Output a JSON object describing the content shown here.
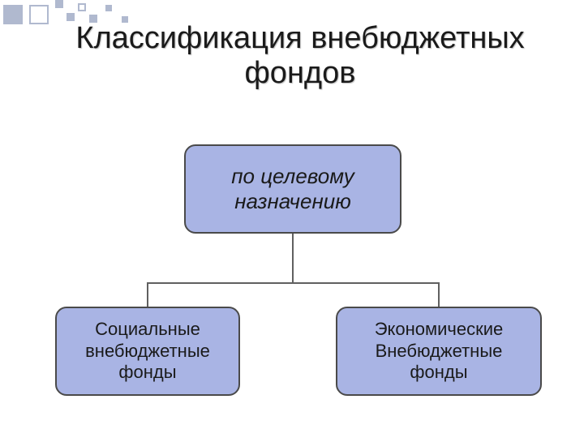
{
  "title": {
    "line1": "Классификация внебюджетных",
    "line2": "фондов",
    "fontsize": 38,
    "color": "#1a1a1a"
  },
  "diagram": {
    "type": "tree",
    "node_fill": "#a9b4e4",
    "node_border_color": "#4a4a4a",
    "node_border_radius": 14,
    "node_border_width": 2,
    "connector_color": "#606060",
    "connector_width": 2,
    "background_color": "#ffffff",
    "nodes": {
      "root": {
        "text": "по целевому\nназначению",
        "fontsize": 26,
        "italic": true
      },
      "left": {
        "text": "Социальные\nвнебюджетные\nфонды",
        "fontsize": 22,
        "italic": false
      },
      "right": {
        "text": "Экономические\nВнебюджетные\nфонды",
        "fontsize": 22,
        "italic": false
      }
    },
    "edges": [
      {
        "from": "root",
        "to": "left"
      },
      {
        "from": "root",
        "to": "right"
      }
    ]
  },
  "decoration": {
    "square_color": "#b0b9cf"
  }
}
